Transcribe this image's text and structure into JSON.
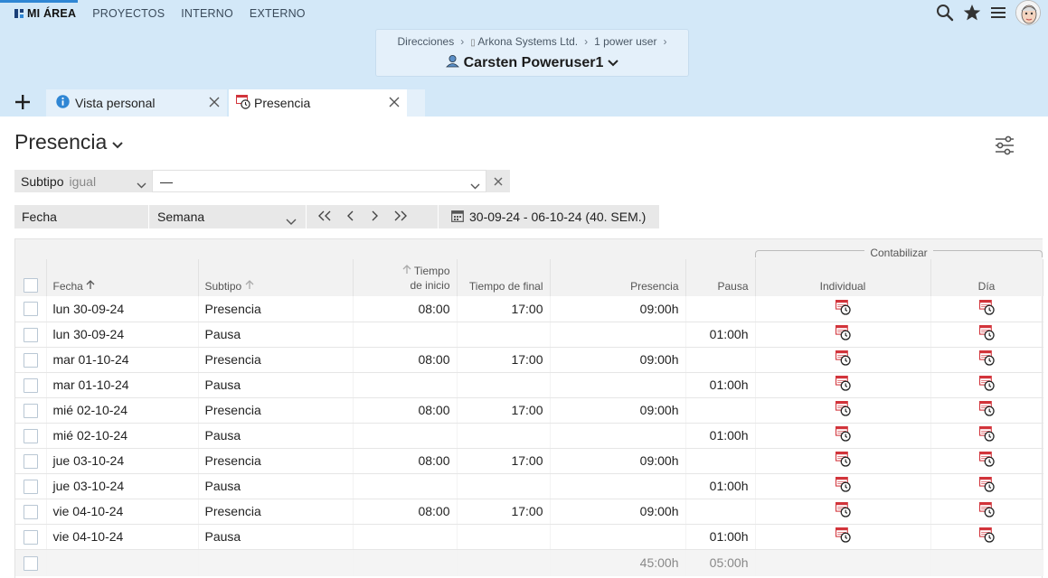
{
  "topnav": {
    "items": [
      {
        "label": "MI ÁREA",
        "active": true
      },
      {
        "label": "PROYECTOS",
        "active": false
      },
      {
        "label": "INTERNO",
        "active": false
      },
      {
        "label": "EXTERNO",
        "active": false
      }
    ],
    "icons": [
      "search-icon",
      "star-icon",
      "menu-icon",
      "avatar"
    ]
  },
  "context": {
    "breadcrumbs": [
      "Direcciones",
      "Arkona Systems Ltd.",
      "1 power user"
    ],
    "user": "Carsten Poweruser1"
  },
  "tabs": [
    {
      "label": "Vista personal",
      "icon": "info-icon"
    },
    {
      "label": "Presencia",
      "icon": "presence-icon"
    }
  ],
  "page": {
    "title": "Presencia"
  },
  "filter": {
    "field": "Subtipo",
    "operator": "igual",
    "value": "—"
  },
  "datebar": {
    "field": "Fecha",
    "period": "Semana",
    "range": "30-09-24 - 06-10-24 (40. SEM.)"
  },
  "table": {
    "group_header": "Contabilizar",
    "columns": {
      "fecha": "Fecha",
      "subtipo": "Subtipo",
      "tiempo_inicio_1": "Tiempo",
      "tiempo_inicio_2": "de inicio",
      "tiempo_final": "Tiempo de final",
      "presencia": "Presencia",
      "pausa": "Pausa",
      "individual": "Individual",
      "dia": "Día"
    },
    "rows": [
      {
        "fecha": "lun 30-09-24",
        "subtipo": "Presencia",
        "inicio": "08:00",
        "final": "17:00",
        "presencia": "09:00h",
        "pausa": ""
      },
      {
        "fecha": "lun 30-09-24",
        "subtipo": "Pausa",
        "inicio": "",
        "final": "",
        "presencia": "",
        "pausa": "01:00h"
      },
      {
        "fecha": "mar 01-10-24",
        "subtipo": "Presencia",
        "inicio": "08:00",
        "final": "17:00",
        "presencia": "09:00h",
        "pausa": ""
      },
      {
        "fecha": "mar 01-10-24",
        "subtipo": "Pausa",
        "inicio": "",
        "final": "",
        "presencia": "",
        "pausa": "01:00h"
      },
      {
        "fecha": "mié 02-10-24",
        "subtipo": "Presencia",
        "inicio": "08:00",
        "final": "17:00",
        "presencia": "09:00h",
        "pausa": ""
      },
      {
        "fecha": "mié 02-10-24",
        "subtipo": "Pausa",
        "inicio": "",
        "final": "",
        "presencia": "",
        "pausa": "01:00h"
      },
      {
        "fecha": "jue 03-10-24",
        "subtipo": "Presencia",
        "inicio": "08:00",
        "final": "17:00",
        "presencia": "09:00h",
        "pausa": ""
      },
      {
        "fecha": "jue 03-10-24",
        "subtipo": "Pausa",
        "inicio": "",
        "final": "",
        "presencia": "",
        "pausa": "01:00h"
      },
      {
        "fecha": "vie 04-10-24",
        "subtipo": "Presencia",
        "inicio": "08:00",
        "final": "17:00",
        "presencia": "09:00h",
        "pausa": ""
      },
      {
        "fecha": "vie 04-10-24",
        "subtipo": "Pausa",
        "inicio": "",
        "final": "",
        "presencia": "",
        "pausa": "01:00h"
      }
    ],
    "totals": {
      "presencia": "45:00h",
      "pausa": "05:00h"
    }
  },
  "colors": {
    "header_bg": "#d3e8f8",
    "accent": "#2f86d4",
    "presence_icon": "#d2343b"
  }
}
